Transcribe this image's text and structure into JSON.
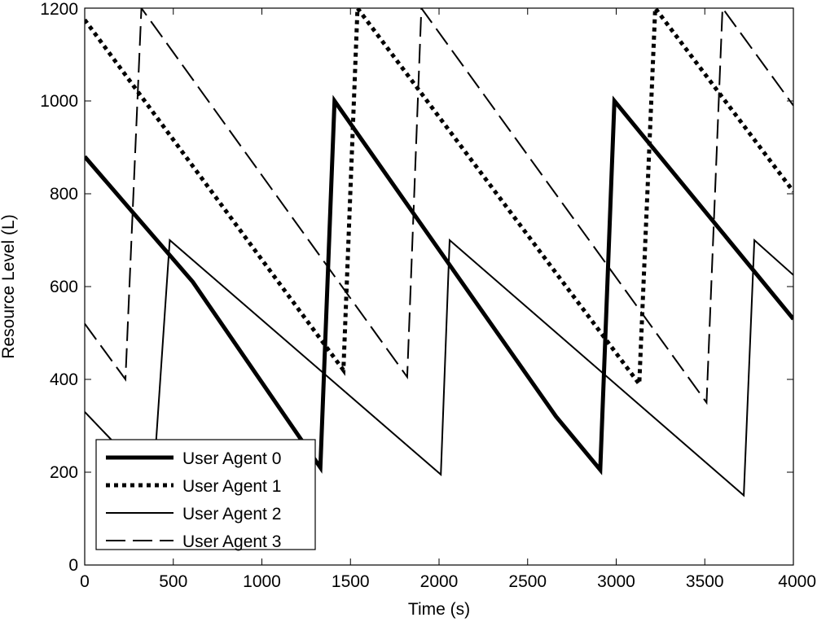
{
  "chart_data": {
    "type": "line",
    "title": "",
    "xlabel": "Time (s)",
    "ylabel": "Resource Level (L)",
    "xlim": [
      0,
      4000
    ],
    "ylim": [
      0,
      1200
    ],
    "xticks": [
      0,
      500,
      1000,
      1500,
      2000,
      2500,
      3000,
      3500,
      4000
    ],
    "yticks": [
      0,
      200,
      400,
      600,
      800,
      1000,
      1200
    ],
    "grid": false,
    "legend_position": "bottom-left",
    "series": [
      {
        "name": "User Agent 0",
        "style": "thick-solid",
        "color": "#000000",
        "x": [
          0,
          610,
          1330,
          1410,
          2660,
          2910,
          2990,
          4000
        ],
        "y": [
          880,
          610,
          210,
          1000,
          320,
          205,
          1000,
          530
        ]
      },
      {
        "name": "User Agent 1",
        "style": "dotted",
        "color": "#000000",
        "x": [
          0,
          1460,
          1540,
          3130,
          3220,
          4000
        ],
        "y": [
          1175,
          420,
          1200,
          390,
          1200,
          805
        ]
      },
      {
        "name": "User Agent 2",
        "style": "thin-solid",
        "color": "#000000",
        "x": [
          0,
          200,
          400,
          480,
          2010,
          2060,
          3720,
          3780,
          4000
        ],
        "y": [
          330,
          250,
          250,
          700,
          195,
          700,
          150,
          700,
          625
        ]
      },
      {
        "name": "User Agent 3",
        "style": "dashed",
        "color": "#000000",
        "x": [
          0,
          230,
          320,
          1820,
          1900,
          3510,
          3600,
          4000
        ],
        "y": [
          520,
          400,
          1200,
          405,
          1200,
          350,
          1200,
          990
        ]
      }
    ]
  }
}
